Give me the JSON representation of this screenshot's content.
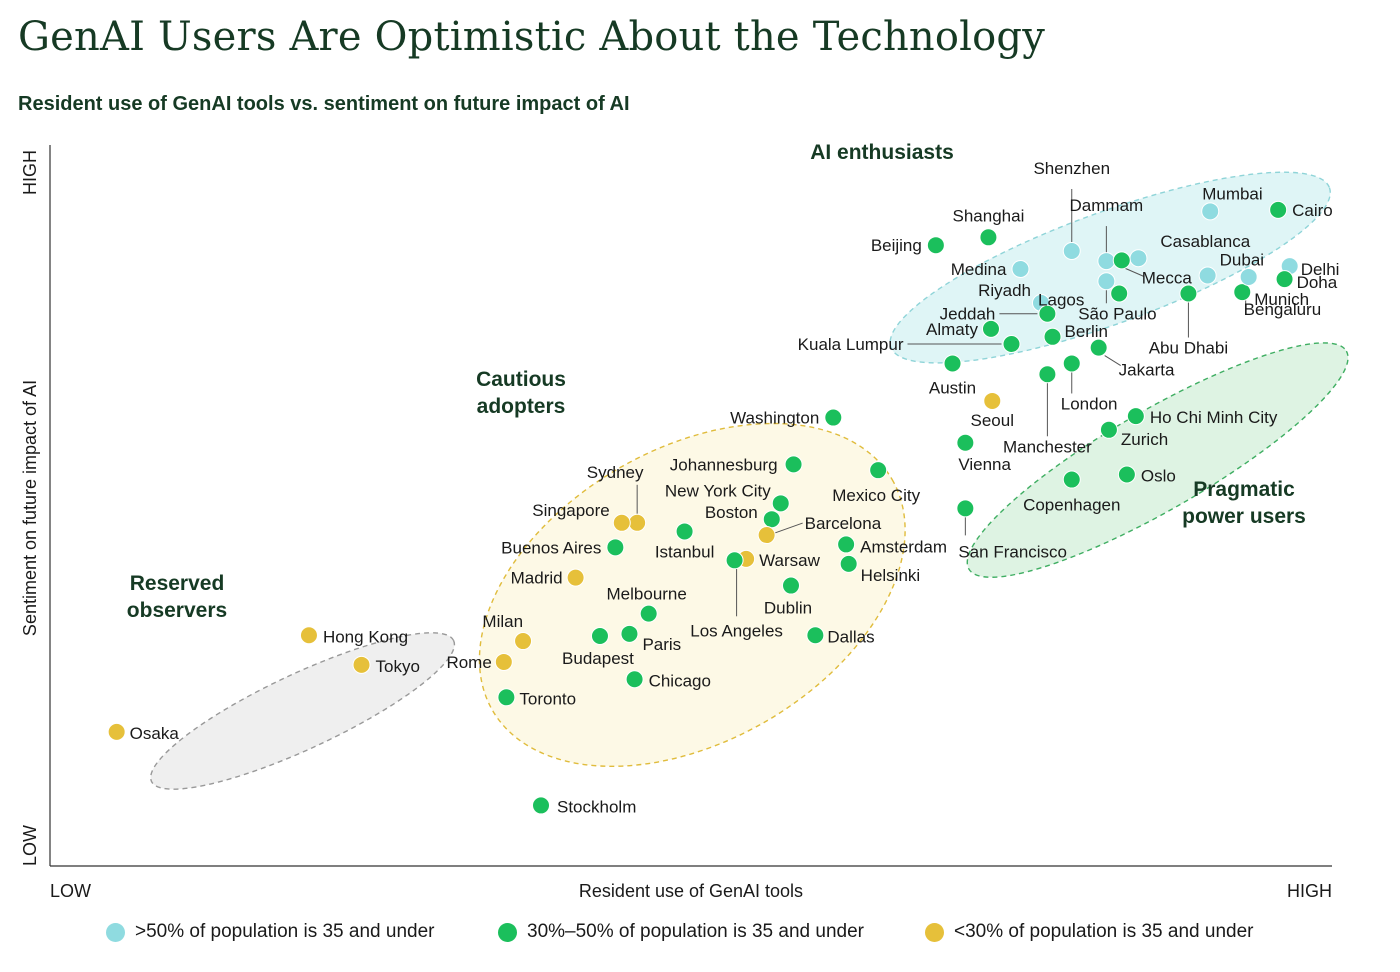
{
  "title": "GenAI Users Are Optimistic About the Technology",
  "subtitle": "Resident use of GenAI tools vs. sentiment on future impact of AI",
  "colors": {
    "cyan": "#8fdbe0",
    "green": "#1bbf5c",
    "yellow": "#e6c03a"
  },
  "legend": [
    {
      "label": ">50% of population is 35 and under",
      "color": "cyan"
    },
    {
      "label": "30%–50% of population is 35 and under",
      "color": "green"
    },
    {
      "label": "<30% of population is 35 and under",
      "color": "yellow"
    }
  ],
  "chart_data": {
    "type": "scatter",
    "xlabel": "Resident use of GenAI tools",
    "ylabel": "Sentiment on future impact of AI",
    "x_low_label": "LOW",
    "x_high_label": "HIGH",
    "y_low_label": "LOW",
    "y_high_label": "HIGH",
    "xlim": [
      0,
      100
    ],
    "ylim": [
      0,
      100
    ],
    "groups": [
      {
        "name": "AI enthusiasts",
        "color": "cyan",
        "cx": 82.7,
        "cy": 83.0,
        "rx": 18.2,
        "ry": 7.7,
        "rot": -20
      },
      {
        "name": "Pragmatic power users",
        "color": "green",
        "cx": 86.4,
        "cy": 56.3,
        "rx": 17.0,
        "ry": 6.9,
        "rot": -30
      },
      {
        "name": "Cautious adopters",
        "color": "yellow",
        "cx": 50.1,
        "cy": 37.6,
        "rx": 18.0,
        "ry": 20.3,
        "rot": -30
      },
      {
        "name": "Reserved observers",
        "color": "gray",
        "cx": 19.7,
        "cy": 21.5,
        "rx": 13.0,
        "ry": 5.2,
        "rot": -25
      }
    ],
    "points": [
      {
        "city": "Cairo",
        "x": 95.8,
        "y": 91.0,
        "group": "green"
      },
      {
        "city": "Mumbai",
        "x": 90.5,
        "y": 90.8,
        "group": "cyan"
      },
      {
        "city": "Shenzhen",
        "x": 79.7,
        "y": 85.3,
        "group": "cyan"
      },
      {
        "city": "Dammam",
        "x": 82.4,
        "y": 83.9,
        "group": "cyan"
      },
      {
        "city": "Casablanca",
        "x": 84.9,
        "y": 84.3,
        "group": "cyan"
      },
      {
        "city": "Mecca",
        "x": 83.6,
        "y": 84.0,
        "group": "green"
      },
      {
        "city": "Shanghai",
        "x": 73.2,
        "y": 87.2,
        "group": "green"
      },
      {
        "city": "Beijing",
        "x": 69.1,
        "y": 86.1,
        "group": "green"
      },
      {
        "city": "Medina",
        "x": 75.7,
        "y": 82.8,
        "group": "cyan"
      },
      {
        "city": "Dubai",
        "x": 90.3,
        "y": 81.9,
        "group": "cyan"
      },
      {
        "city": "Delhi",
        "x": 96.7,
        "y": 83.2,
        "group": "cyan"
      },
      {
        "city": "Doha",
        "x": 96.3,
        "y": 81.4,
        "group": "green"
      },
      {
        "city": "Munich",
        "x": 93.0,
        "y": 79.6,
        "group": "green"
      },
      {
        "city": "Bengaluru",
        "x": 93.5,
        "y": 81.7,
        "group": "cyan"
      },
      {
        "city": "Abu Dhabi",
        "x": 88.8,
        "y": 79.4,
        "group": "green"
      },
      {
        "city": "Lagos",
        "x": 82.4,
        "y": 81.1,
        "group": "cyan"
      },
      {
        "city": "São Paulo",
        "x": 83.4,
        "y": 79.4,
        "group": "green"
      },
      {
        "city": "Riyadh",
        "x": 77.3,
        "y": 78.1,
        "group": "cyan"
      },
      {
        "city": "Jeddah",
        "x": 77.8,
        "y": 76.6,
        "group": "green"
      },
      {
        "city": "Almaty",
        "x": 73.4,
        "y": 74.5,
        "group": "green"
      },
      {
        "city": "Berlin",
        "x": 78.2,
        "y": 73.4,
        "group": "green"
      },
      {
        "city": "Kuala Lumpur",
        "x": 75.0,
        "y": 72.4,
        "group": "green"
      },
      {
        "city": "Jakarta",
        "x": 81.8,
        "y": 71.9,
        "group": "green"
      },
      {
        "city": "Austin",
        "x": 70.4,
        "y": 69.7,
        "group": "green"
      },
      {
        "city": "London",
        "x": 79.7,
        "y": 69.7,
        "group": "green"
      },
      {
        "city": "Manchester",
        "x": 77.8,
        "y": 68.2,
        "group": "green"
      },
      {
        "city": "Seoul",
        "x": 73.5,
        "y": 64.5,
        "group": "yellow"
      },
      {
        "city": "Ho Chi Minh City",
        "x": 84.7,
        "y": 62.4,
        "group": "green"
      },
      {
        "city": "Zurich",
        "x": 82.6,
        "y": 60.5,
        "group": "green"
      },
      {
        "city": "Vienna",
        "x": 71.4,
        "y": 58.7,
        "group": "green"
      },
      {
        "city": "Oslo",
        "x": 84.0,
        "y": 54.3,
        "group": "green"
      },
      {
        "city": "Copenhagen",
        "x": 79.7,
        "y": 53.6,
        "group": "green"
      },
      {
        "city": "San Francisco",
        "x": 71.4,
        "y": 49.6,
        "group": "green"
      },
      {
        "city": "Washington",
        "x": 61.1,
        "y": 62.2,
        "group": "green"
      },
      {
        "city": "Johannesburg",
        "x": 58.0,
        "y": 55.7,
        "group": "green"
      },
      {
        "city": "Mexico City",
        "x": 64.6,
        "y": 54.9,
        "group": "green"
      },
      {
        "city": "New York City",
        "x": 57.0,
        "y": 50.3,
        "group": "green"
      },
      {
        "city": "Boston",
        "x": 56.3,
        "y": 48.1,
        "group": "green"
      },
      {
        "city": "Barcelona",
        "x": 55.9,
        "y": 45.9,
        "group": "yellow"
      },
      {
        "city": "Sydney",
        "x": 45.8,
        "y": 47.6,
        "group": "yellow"
      },
      {
        "city": "Singapore",
        "x": 44.6,
        "y": 47.6,
        "group": "yellow"
      },
      {
        "city": "Istanbul",
        "x": 49.5,
        "y": 46.4,
        "group": "green"
      },
      {
        "city": "Buenos Aires",
        "x": 44.1,
        "y": 44.2,
        "group": "green"
      },
      {
        "city": "Amsterdam",
        "x": 62.1,
        "y": 44.6,
        "group": "green"
      },
      {
        "city": "Warsaw",
        "x": 54.3,
        "y": 42.6,
        "group": "yellow"
      },
      {
        "city": "Los Angeles",
        "x": 53.4,
        "y": 42.4,
        "group": "green"
      },
      {
        "city": "Helsinki",
        "x": 62.3,
        "y": 41.9,
        "group": "green"
      },
      {
        "city": "Madrid",
        "x": 41.0,
        "y": 40.0,
        "group": "yellow"
      },
      {
        "city": "Dublin",
        "x": 57.8,
        "y": 38.9,
        "group": "green"
      },
      {
        "city": "Melbourne",
        "x": 46.7,
        "y": 35.0,
        "group": "green"
      },
      {
        "city": "Milan",
        "x": 36.9,
        "y": 31.2,
        "group": "yellow"
      },
      {
        "city": "Budapest",
        "x": 42.9,
        "y": 31.9,
        "group": "green"
      },
      {
        "city": "Paris",
        "x": 45.2,
        "y": 32.2,
        "group": "green"
      },
      {
        "city": "Dallas",
        "x": 59.7,
        "y": 32.0,
        "group": "green"
      },
      {
        "city": "Rome",
        "x": 35.4,
        "y": 28.3,
        "group": "yellow"
      },
      {
        "city": "Chicago",
        "x": 45.6,
        "y": 25.9,
        "group": "green"
      },
      {
        "city": "Toronto",
        "x": 35.6,
        "y": 23.4,
        "group": "green"
      },
      {
        "city": "Hong Kong",
        "x": 20.2,
        "y": 32.0,
        "group": "yellow"
      },
      {
        "city": "Tokyo",
        "x": 24.3,
        "y": 27.9,
        "group": "yellow"
      },
      {
        "city": "Osaka",
        "x": 5.2,
        "y": 18.6,
        "group": "yellow"
      },
      {
        "city": "Stockholm",
        "x": 38.3,
        "y": 8.4,
        "group": "green"
      }
    ]
  }
}
